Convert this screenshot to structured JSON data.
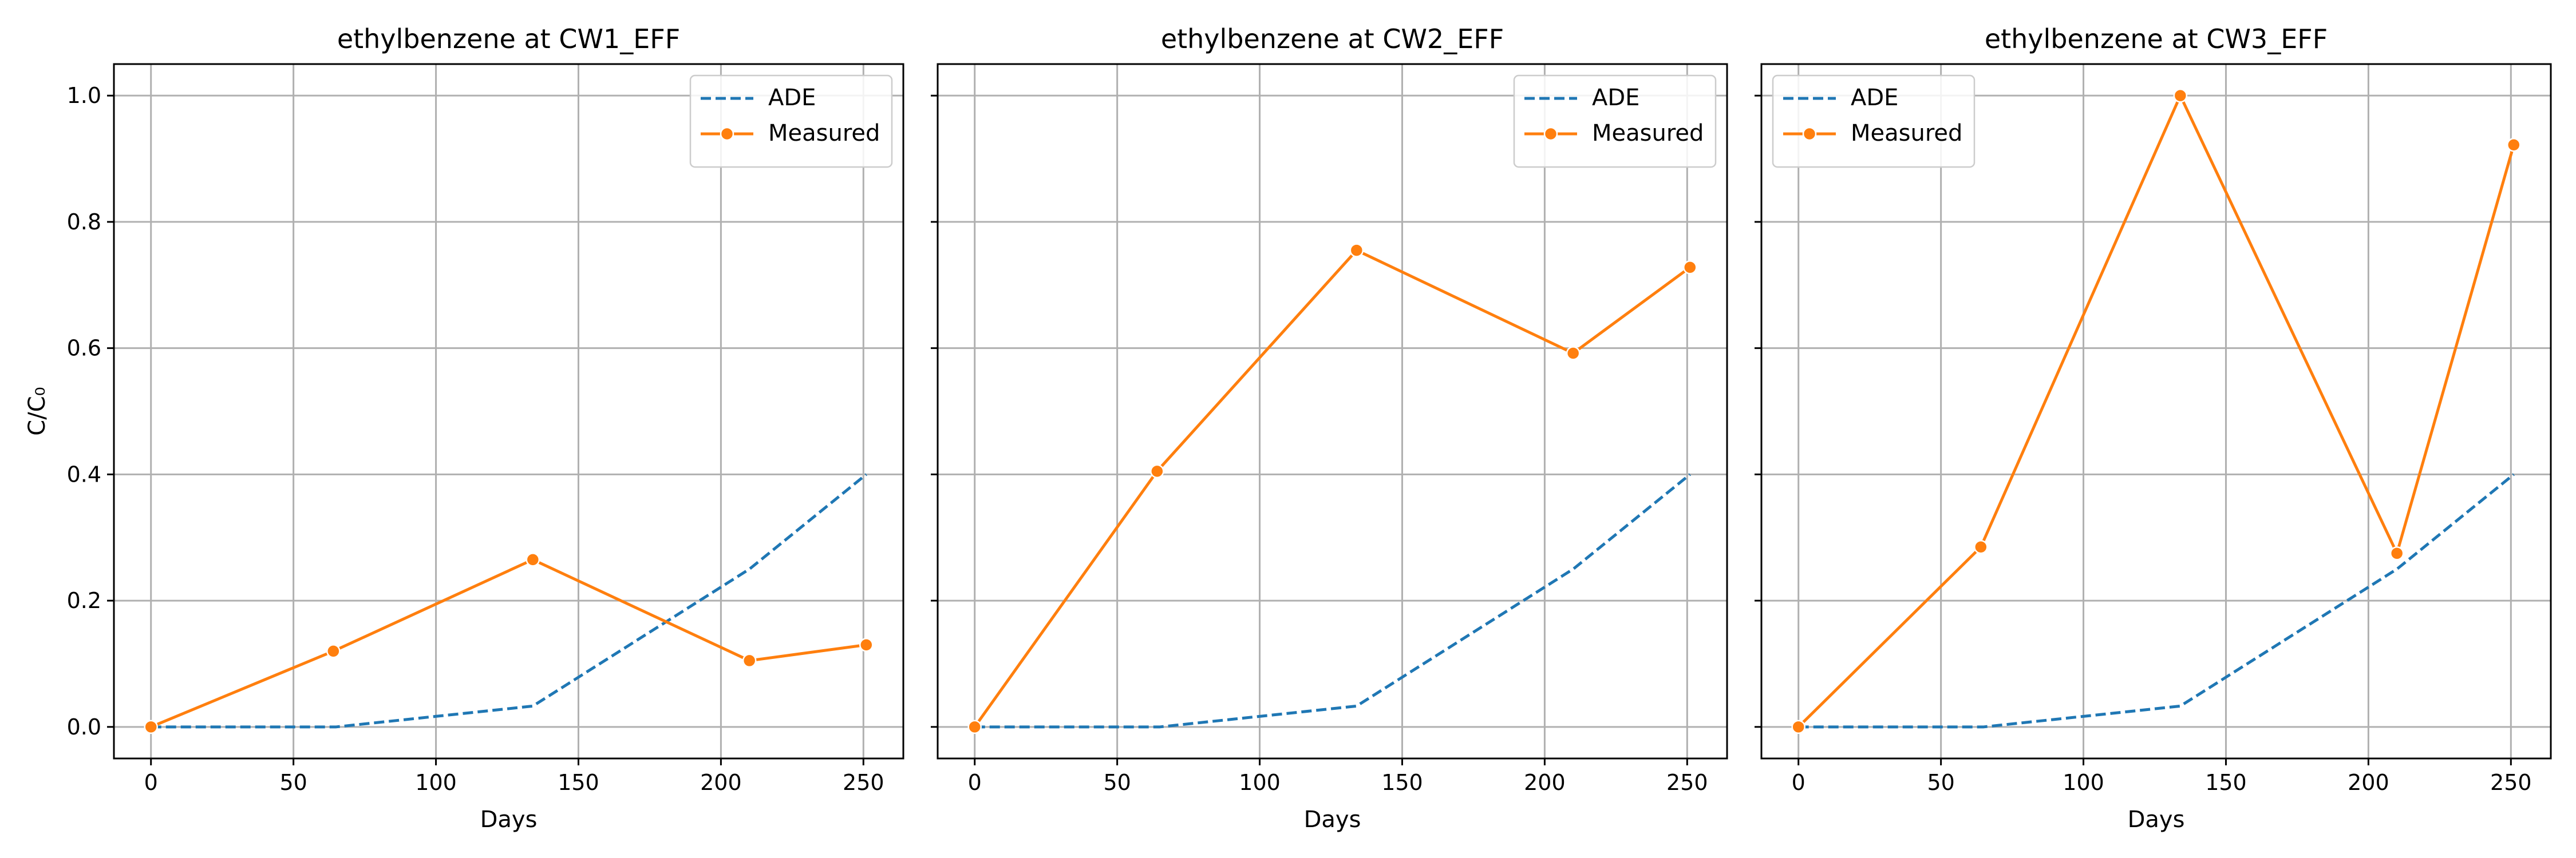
{
  "chart_data": [
    {
      "type": "line",
      "title": "ethylbenzene at CW1_EFF",
      "xlabel": "Days",
      "ylabel": "C/C₀",
      "xlim": [
        -13,
        264
      ],
      "ylim": [
        -0.05,
        1.05
      ],
      "xticks": [
        0,
        50,
        100,
        150,
        200,
        250
      ],
      "yticks": [
        0.0,
        0.2,
        0.4,
        0.6,
        0.8,
        1.0
      ],
      "grid": true,
      "legend": "top-right",
      "series": [
        {
          "name": "ADE",
          "style": "dashed",
          "color": "#1f77b4",
          "marker": "none",
          "x": [
            0,
            65,
            134,
            210,
            251
          ],
          "y": [
            0.0,
            0.0,
            0.033,
            0.25,
            0.4
          ]
        },
        {
          "name": "Measured",
          "style": "solid",
          "color": "#ff7f0e",
          "marker": "circle",
          "x": [
            0,
            64,
            134,
            210,
            251
          ],
          "y": [
            0.0,
            0.12,
            0.265,
            0.105,
            0.13
          ]
        }
      ]
    },
    {
      "type": "line",
      "title": "ethylbenzene at CW2_EFF",
      "xlabel": "Days",
      "ylabel": "",
      "xlim": [
        -13,
        264
      ],
      "ylim": [
        -0.05,
        1.05
      ],
      "xticks": [
        0,
        50,
        100,
        150,
        200,
        250
      ],
      "yticks": [
        0.0,
        0.2,
        0.4,
        0.6,
        0.8,
        1.0
      ],
      "grid": true,
      "legend": "top-right",
      "series": [
        {
          "name": "ADE",
          "style": "dashed",
          "color": "#1f77b4",
          "marker": "none",
          "x": [
            0,
            65,
            134,
            210,
            251
          ],
          "y": [
            0.0,
            0.0,
            0.033,
            0.25,
            0.4
          ]
        },
        {
          "name": "Measured",
          "style": "solid",
          "color": "#ff7f0e",
          "marker": "circle",
          "x": [
            0,
            64,
            134,
            210,
            251
          ],
          "y": [
            0.0,
            0.405,
            0.755,
            0.592,
            0.728
          ]
        }
      ]
    },
    {
      "type": "line",
      "title": "ethylbenzene at CW3_EFF",
      "xlabel": "Days",
      "ylabel": "",
      "xlim": [
        -13,
        264
      ],
      "ylim": [
        -0.05,
        1.05
      ],
      "xticks": [
        0,
        50,
        100,
        150,
        200,
        250
      ],
      "yticks": [
        0.0,
        0.2,
        0.4,
        0.6,
        0.8,
        1.0
      ],
      "grid": true,
      "legend": "top-left",
      "series": [
        {
          "name": "ADE",
          "style": "dashed",
          "color": "#1f77b4",
          "marker": "none",
          "x": [
            0,
            65,
            134,
            210,
            251
          ],
          "y": [
            0.0,
            0.0,
            0.033,
            0.25,
            0.4
          ]
        },
        {
          "name": "Measured",
          "style": "solid",
          "color": "#ff7f0e",
          "marker": "circle",
          "x": [
            0,
            64,
            134,
            210,
            251
          ],
          "y": [
            0.0,
            0.285,
            1.0,
            0.275,
            0.922
          ]
        }
      ]
    }
  ]
}
